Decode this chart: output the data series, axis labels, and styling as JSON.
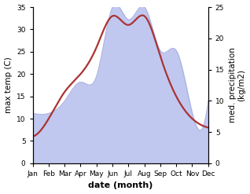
{
  "months": [
    "Jan",
    "Feb",
    "Mar",
    "Apr",
    "May",
    "Jun",
    "Jul",
    "Aug",
    "Sep",
    "Oct",
    "Nov",
    "Dec"
  ],
  "max_temp": [
    6.0,
    10.0,
    16.0,
    20.0,
    26.0,
    33.0,
    31.0,
    33.0,
    24.0,
    15.0,
    10.0,
    8.0
  ],
  "precipitation": [
    8,
    8,
    10,
    13,
    14,
    25,
    23,
    25,
    18,
    18,
    8,
    10
  ],
  "temp_color": "#aa3333",
  "precip_color": "#c0c8f0",
  "ylabel_left": "max temp (C)",
  "ylabel_right": "med. precipitation\n(kg/m2)",
  "xlabel": "date (month)",
  "ylim_left": [
    0,
    35
  ],
  "ylim_right": [
    0,
    25
  ],
  "yticks_left": [
    0,
    5,
    10,
    15,
    20,
    25,
    30,
    35
  ],
  "yticks_right": [
    0,
    5,
    10,
    15,
    20,
    25
  ],
  "background_color": "#ffffff",
  "label_fontsize": 7.5,
  "tick_fontsize": 6.5,
  "xlabel_fontsize": 8,
  "linewidth": 1.6
}
